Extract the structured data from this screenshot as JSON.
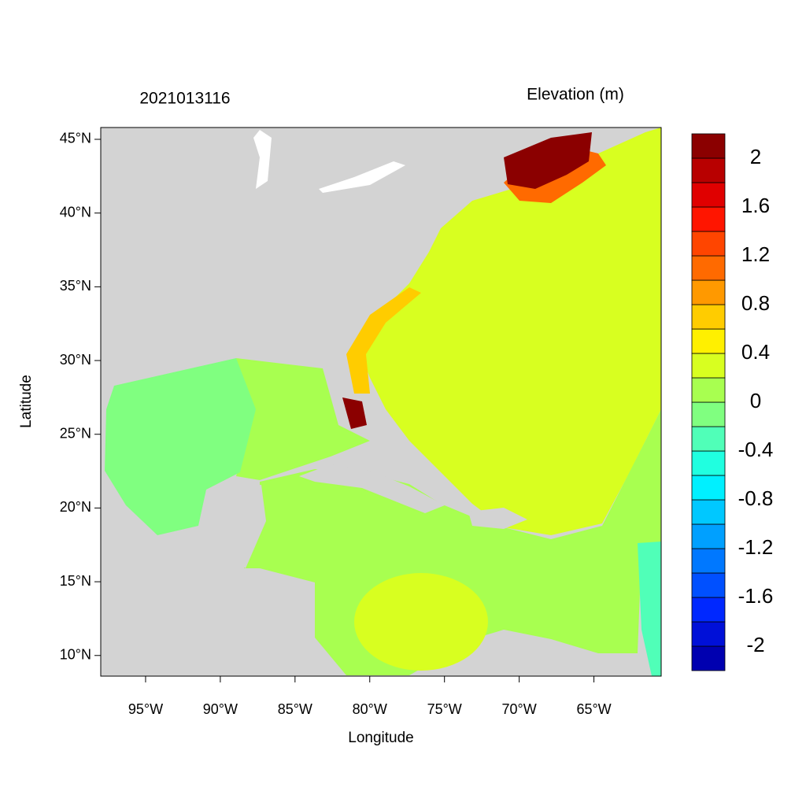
{
  "chart_data": {
    "type": "contour-map",
    "title": "2021013116",
    "colorbar_title": "Elevation (m)",
    "xlabel": "Longitude",
    "ylabel": "Latitude",
    "xlim": [
      -98,
      -60.5
    ],
    "ylim": [
      8.6,
      45.8
    ],
    "xticks": [
      {
        "value": -95,
        "label": "95°W"
      },
      {
        "value": -90,
        "label": "90°W"
      },
      {
        "value": -85,
        "label": "85°W"
      },
      {
        "value": -80,
        "label": "80°W"
      },
      {
        "value": -75,
        "label": "75°W"
      },
      {
        "value": -70,
        "label": "70°W"
      },
      {
        "value": -65,
        "label": "65°W"
      }
    ],
    "yticks": [
      {
        "value": 10,
        "label": "10°N"
      },
      {
        "value": 15,
        "label": "15°N"
      },
      {
        "value": 20,
        "label": "20°N"
      },
      {
        "value": 25,
        "label": "25°N"
      },
      {
        "value": 30,
        "label": "30°N"
      },
      {
        "value": 35,
        "label": "35°N"
      },
      {
        "value": 40,
        "label": "40°N"
      },
      {
        "value": 45,
        "label": "45°N"
      }
    ],
    "colorbar": {
      "bounds": [
        -2.2,
        -2,
        -1.8,
        -1.6,
        -1.4,
        -1.2,
        -1,
        -0.8,
        -0.6,
        -0.4,
        -0.2,
        0,
        0.2,
        0.4,
        0.6,
        0.8,
        1,
        1.2,
        1.4,
        1.6,
        1.8,
        2,
        2.2
      ],
      "colors": [
        "#0000b0",
        "#0010d8",
        "#0028ff",
        "#0050ff",
        "#0078ff",
        "#00a0ff",
        "#00c8ff",
        "#00f0ff",
        "#20ffe0",
        "#50ffb8",
        "#80ff80",
        "#a8ff50",
        "#d8ff20",
        "#fff000",
        "#ffcc00",
        "#ff9900",
        "#ff6a00",
        "#ff4500",
        "#ff1500",
        "#e00000",
        "#b80000",
        "#8b0000"
      ],
      "ticks": [
        -2,
        -1.6,
        -1.2,
        -0.8,
        -0.4,
        0,
        0.4,
        0.8,
        1.2,
        1.6,
        2
      ]
    }
  }
}
